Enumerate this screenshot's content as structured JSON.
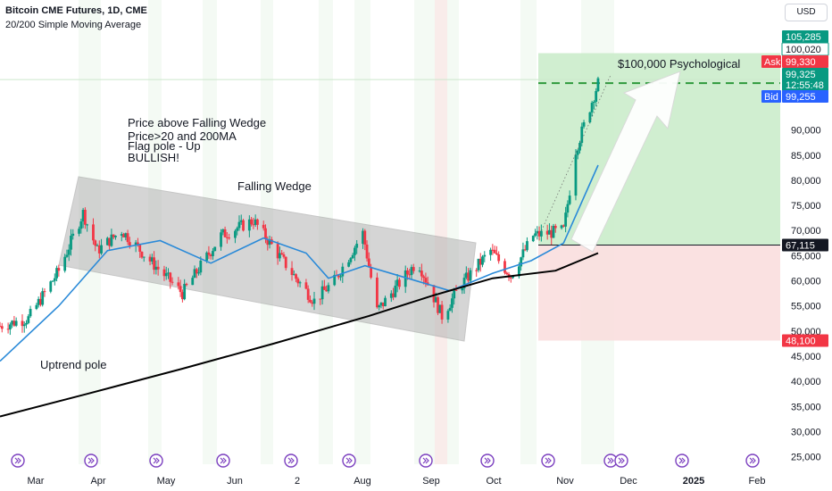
{
  "header": {
    "title": "Bitcoin CME Futures, 1D, CME",
    "subtitle": "20/200 Simple Moving Average",
    "currency": "USD"
  },
  "annotations": {
    "wedge_label": "Falling Wedge",
    "notes": [
      "Price above Falling Wedge",
      "Price>20 and 200MA",
      "Flag pole - Up",
      "BULLISH!"
    ],
    "pole_label": "Uptrend pole",
    "psych_label": "$100,000 Psychological"
  },
  "price_tags": [
    {
      "label": "105,285",
      "value": 105285,
      "color": "#089981"
    },
    {
      "label": "100,020",
      "value": 100020,
      "color": "#ffffff"
    },
    {
      "label": "99,330",
      "value": 99330,
      "color": "#f23645",
      "prefix": "Ask"
    },
    {
      "label": "99,325",
      "value": 99325,
      "color": "#089981",
      "extra": "12:55:48"
    },
    {
      "label": "99,255",
      "value": 99255,
      "color": "#2962ff",
      "prefix": "Bid"
    },
    {
      "label": "67,115",
      "value": 67115,
      "color": "#131722"
    },
    {
      "label": "48,100",
      "value": 48100,
      "color": "#f23645"
    }
  ],
  "colors": {
    "sma20": "#2a8ad8",
    "sma200": "#000000",
    "up": "#089981",
    "down": "#f23645",
    "profit_zone": "#c8ebc8",
    "loss_zone": "#f9dede",
    "wedge": "#b3b3b3"
  },
  "chart_data": {
    "type": "line",
    "title": "Bitcoin CME Futures, 1D, CME",
    "ylim": [
      22000,
      110000
    ],
    "y_ticks": [
      90000,
      85000,
      80000,
      75000,
      70000,
      65000,
      60000,
      55000,
      50000,
      45000,
      40000,
      35000,
      30000,
      25000
    ],
    "x_ticks": [
      "Mar",
      "Apr",
      "May",
      "Jun",
      "2",
      "Aug",
      "Sep",
      "Oct",
      "Nov",
      "Dec",
      "2025",
      "Feb"
    ],
    "series": [
      {
        "points": [
          [
            "2024-02-01",
            51000
          ],
          [
            "2024-02-15",
            52500
          ],
          [
            "2024-03-01",
            62000
          ],
          [
            "2024-03-13",
            73500
          ],
          [
            "2024-03-20",
            66000
          ],
          [
            "2024-04-01",
            70000
          ],
          [
            "2024-04-15",
            64000
          ],
          [
            "2024-05-01",
            57500
          ],
          [
            "2024-05-20",
            69000
          ],
          [
            "2024-06-05",
            72000
          ],
          [
            "2024-06-25",
            61000
          ],
          [
            "2024-07-05",
            56000
          ],
          [
            "2024-07-15",
            60000
          ],
          [
            "2024-07-29",
            69500
          ],
          [
            "2024-08-05",
            54000
          ],
          [
            "2024-08-15",
            59000
          ],
          [
            "2024-08-25",
            64000
          ],
          [
            "2024-09-06",
            53000
          ],
          [
            "2024-09-15",
            59000
          ],
          [
            "2024-09-30",
            66000
          ],
          [
            "2024-10-10",
            61000
          ],
          [
            "2024-10-21",
            69000
          ],
          [
            "2024-11-05",
            70000
          ],
          [
            "2024-11-11",
            86000
          ],
          [
            "2024-11-22",
            99325
          ]
        ]
      },
      {
        "name": "20 SMA",
        "points": [
          [
            "2024-02-01",
            44000
          ],
          [
            "2024-03-01",
            55000
          ],
          [
            "2024-03-25",
            66000
          ],
          [
            "2024-04-20",
            68000
          ],
          [
            "2024-05-15",
            63500
          ],
          [
            "2024-06-10",
            68500
          ],
          [
            "2024-07-01",
            65500
          ],
          [
            "2024-07-12",
            60500
          ],
          [
            "2024-07-30",
            63000
          ],
          [
            "2024-08-20",
            60500
          ],
          [
            "2024-09-10",
            58000
          ],
          [
            "2024-10-01",
            61500
          ],
          [
            "2024-10-20",
            64000
          ],
          [
            "2024-11-05",
            67500
          ],
          [
            "2024-11-22",
            83000
          ]
        ]
      },
      {
        "name": "200 SMA",
        "points": [
          [
            "2024-02-01",
            33000
          ],
          [
            "2024-03-15",
            37500
          ],
          [
            "2024-05-01",
            42500
          ],
          [
            "2024-06-15",
            47500
          ],
          [
            "2024-08-01",
            53000
          ],
          [
            "2024-09-01",
            57000
          ],
          [
            "2024-10-01",
            60500
          ],
          [
            "2024-11-01",
            62000
          ],
          [
            "2024-11-22",
            65500
          ]
        ]
      }
    ]
  }
}
